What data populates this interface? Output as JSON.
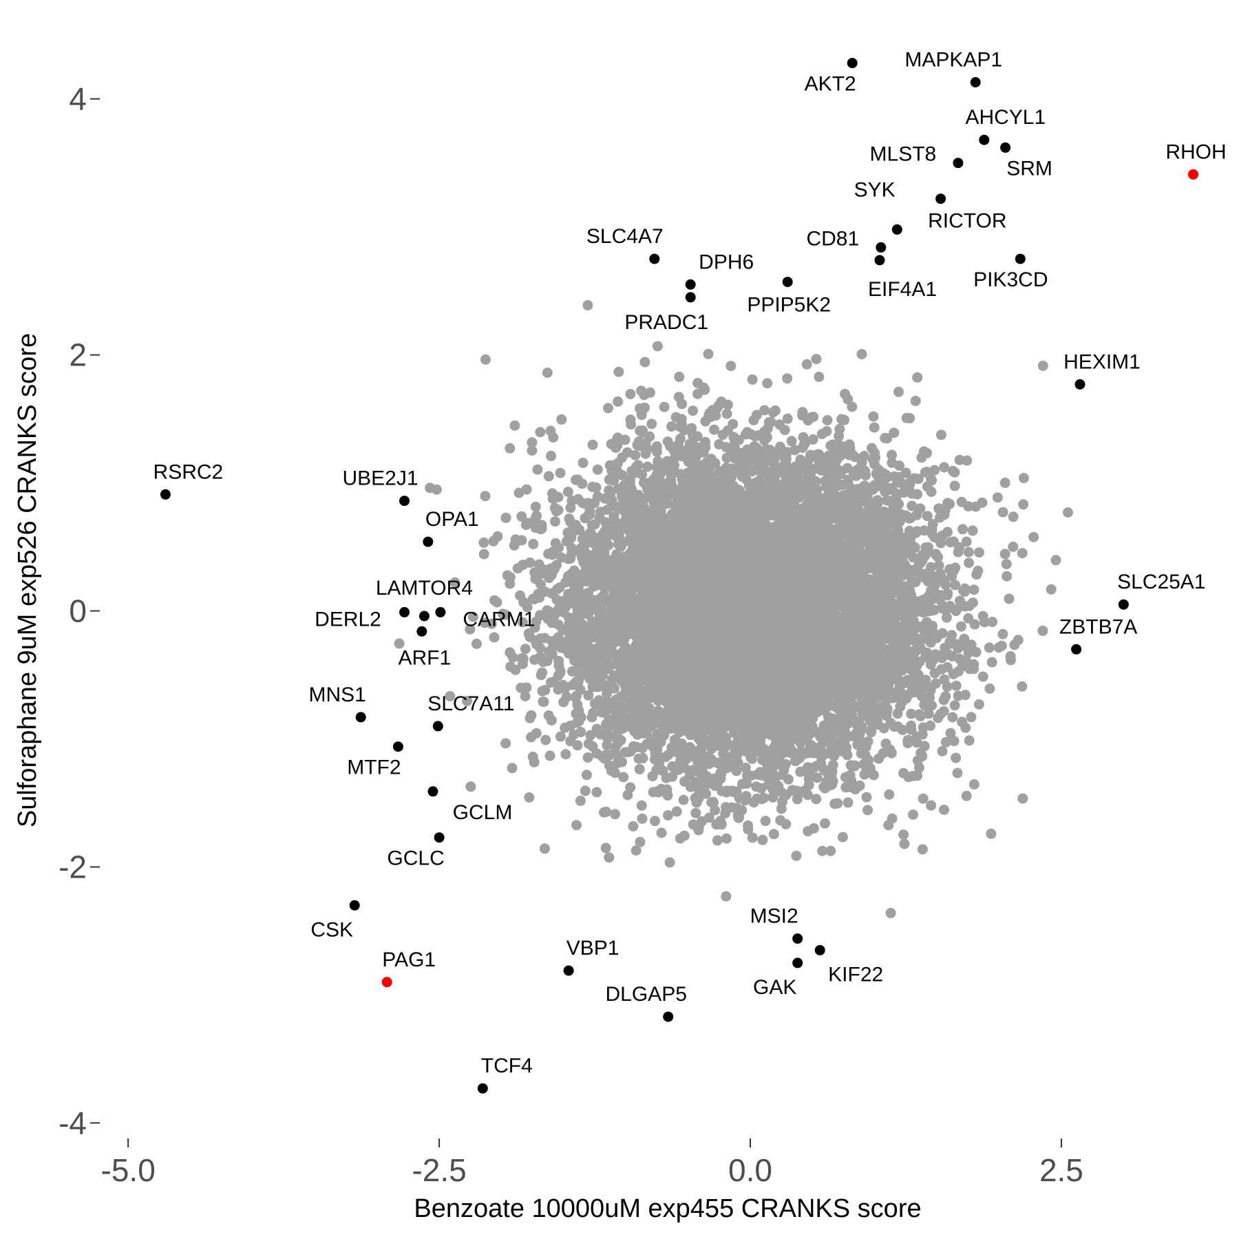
{
  "chart_data": {
    "type": "scatter",
    "xlabel": "Benzoate 10000uM exp455 CRANKS score",
    "ylabel": "Sulforaphane 9uM exp526 CRANKS score",
    "xlim": [
      -5.2,
      3.9
    ],
    "ylim": [
      -4.1,
      4.45
    ],
    "x_ticks": [
      -5.0,
      -2.5,
      0.0,
      2.5
    ],
    "x_tick_labels": [
      "-5.0",
      "-2.5",
      "0.0",
      "2.5"
    ],
    "y_ticks": [
      -4,
      -2,
      0,
      2,
      4
    ],
    "y_tick_labels": [
      "-4",
      "-2",
      "0",
      "2",
      "4"
    ],
    "grid": false,
    "colors": {
      "background": "#ffffff",
      "background_points": "#a0a0a0",
      "highlight": "#000000",
      "special": "#ff0000"
    },
    "background_cloud": {
      "color": "#a0a0a0",
      "approx_points": 9000,
      "center": [
        0.0,
        0.0
      ],
      "sd": [
        0.72,
        0.62
      ]
    },
    "highlighted": [
      {
        "gene": "AKT2",
        "x": 0.82,
        "y": 4.28,
        "color": "#000000"
      },
      {
        "gene": "MAPKAP1",
        "x": 1.81,
        "y": 4.13,
        "color": "#000000"
      },
      {
        "gene": "AHCYL1",
        "x": 1.88,
        "y": 3.68,
        "color": "#000000"
      },
      {
        "gene": "SRM",
        "x": 2.05,
        "y": 3.62,
        "color": "#000000"
      },
      {
        "gene": "MLST8",
        "x": 1.67,
        "y": 3.5,
        "color": "#000000"
      },
      {
        "gene": "RHOH",
        "x": 3.56,
        "y": 3.41,
        "color": "#ff0000"
      },
      {
        "gene": "SYK",
        "x": 1.53,
        "y": 3.22,
        "color": "#000000"
      },
      {
        "gene": "RICTOR",
        "x": 1.18,
        "y": 2.98,
        "color": "#000000"
      },
      {
        "gene": "CD81",
        "x": 1.05,
        "y": 2.84,
        "color": "#000000"
      },
      {
        "gene": "EIF4A1",
        "x": 1.04,
        "y": 2.74,
        "color": "#000000"
      },
      {
        "gene": "PIK3CD",
        "x": 2.17,
        "y": 2.75,
        "color": "#000000"
      },
      {
        "gene": "SLC4A7",
        "x": -0.77,
        "y": 2.75,
        "color": "#000000"
      },
      {
        "gene": "DPH6",
        "x": -0.48,
        "y": 2.55,
        "color": "#000000"
      },
      {
        "gene": "PRADC1",
        "x": -0.48,
        "y": 2.45,
        "color": "#000000"
      },
      {
        "gene": "PPIP5K2",
        "x": 0.3,
        "y": 2.57,
        "color": "#000000"
      },
      {
        "gene": "HEXIM1",
        "x": 2.65,
        "y": 1.77,
        "color": "#000000"
      },
      {
        "gene": "RSRC2",
        "x": -4.7,
        "y": 0.91,
        "color": "#000000"
      },
      {
        "gene": "UBE2J1",
        "x": -2.78,
        "y": 0.86,
        "color": "#000000"
      },
      {
        "gene": "OPA1",
        "x": -2.59,
        "y": 0.54,
        "color": "#000000"
      },
      {
        "gene": "LAMTOR4",
        "x": -2.62,
        "y": -0.04,
        "color": "#000000"
      },
      {
        "gene": "DERL2",
        "x": -2.78,
        "y": -0.01,
        "color": "#000000"
      },
      {
        "gene": "CARM1",
        "x": -2.49,
        "y": -0.01,
        "color": "#000000"
      },
      {
        "gene": "ARF1",
        "x": -2.64,
        "y": -0.16,
        "color": "#000000"
      },
      {
        "gene": "SLC25A1",
        "x": 3.0,
        "y": 0.05,
        "color": "#000000"
      },
      {
        "gene": "ZBTB7A",
        "x": 2.62,
        "y": -0.3,
        "color": "#000000"
      },
      {
        "gene": "MNS1",
        "x": -3.13,
        "y": -0.83,
        "color": "#000000"
      },
      {
        "gene": "SLC7A11",
        "x": -2.51,
        "y": -0.9,
        "color": "#000000"
      },
      {
        "gene": "MTF2",
        "x": -2.83,
        "y": -1.06,
        "color": "#000000"
      },
      {
        "gene": "GCLM",
        "x": -2.55,
        "y": -1.41,
        "color": "#000000"
      },
      {
        "gene": "GCLC",
        "x": -2.5,
        "y": -1.77,
        "color": "#000000"
      },
      {
        "gene": "CSK",
        "x": -3.18,
        "y": -2.3,
        "color": "#000000"
      },
      {
        "gene": "PAG1",
        "x": -2.92,
        "y": -2.9,
        "color": "#ff0000"
      },
      {
        "gene": "VBP1",
        "x": -1.46,
        "y": -2.81,
        "color": "#000000"
      },
      {
        "gene": "DLGAP5",
        "x": -0.66,
        "y": -3.17,
        "color": "#000000"
      },
      {
        "gene": "MSI2",
        "x": 0.38,
        "y": -2.56,
        "color": "#000000"
      },
      {
        "gene": "KIF22",
        "x": 0.56,
        "y": -2.65,
        "color": "#000000"
      },
      {
        "gene": "GAK",
        "x": 0.38,
        "y": -2.75,
        "color": "#000000"
      },
      {
        "gene": "TCF4",
        "x": -2.15,
        "y": -3.73,
        "color": "#000000"
      }
    ]
  }
}
